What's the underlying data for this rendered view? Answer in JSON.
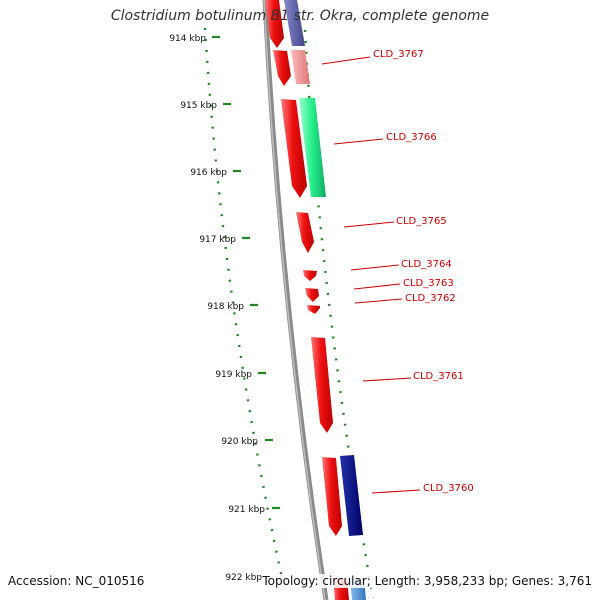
{
  "title": "Clostridium botulinum B1 str. Okra, complete genome",
  "footer": {
    "accession": "Accession: NC_010516",
    "topology": "Topology: circular; Length: 3,958,233 bp; Genes: 3,761"
  },
  "ruler_ticks": [
    "914 kbp",
    "915 kbp",
    "916 kbp",
    "917 kbp",
    "918 kbp",
    "919 kbp",
    "920 kbp",
    "921 kbp",
    "922 kbp"
  ],
  "colors": {
    "backbone": "#808080",
    "gene_red": "#ee1111",
    "gene_pink": "#ee8888",
    "gene_green": "#22ee88",
    "gene_navy": "#000088",
    "gene_purple": "#6666aa",
    "gene_blue": "#4488cc",
    "ruler": "#228822",
    "label": "#cc0000"
  },
  "genes": [
    {
      "label": "CLD_3767"
    },
    {
      "label": "CLD_3766"
    },
    {
      "label": "CLD_3765"
    },
    {
      "label": "CLD_3764"
    },
    {
      "label": "CLD_3763"
    },
    {
      "label": "CLD_3762"
    },
    {
      "label": "CLD_3761"
    },
    {
      "label": "CLD_3760"
    }
  ]
}
